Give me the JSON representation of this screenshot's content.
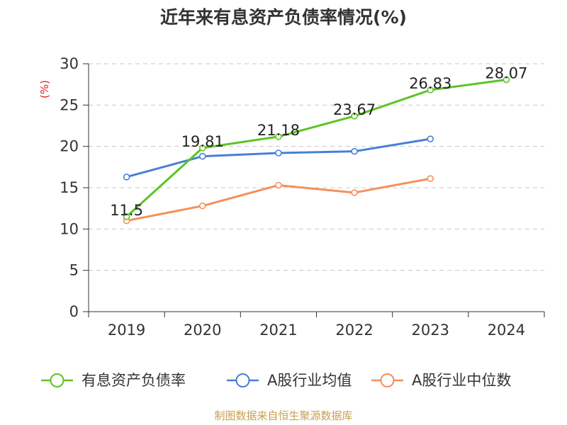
{
  "chart_data": {
    "type": "line",
    "title": "近年来有息资产负债率情况(%)",
    "ylabel": "(%)",
    "xlabel": "",
    "categories": [
      "2019",
      "2020",
      "2021",
      "2022",
      "2023",
      "2024"
    ],
    "ylim": [
      0,
      30
    ],
    "yticks": [
      0,
      5,
      10,
      15,
      20,
      25,
      30
    ],
    "grid": true,
    "legend_position": "bottom",
    "series": [
      {
        "name": "有息资产负债率",
        "color": "#5cc424",
        "values": [
          11.5,
          19.81,
          21.18,
          23.67,
          26.83,
          28.07
        ],
        "labels": [
          "11.5",
          "19.81",
          "21.18",
          "23.67",
          "26.83",
          "28.07"
        ]
      },
      {
        "name": "A股行业均值",
        "color": "#4a7fd8",
        "values": [
          16.3,
          18.8,
          19.2,
          19.4,
          20.9,
          null
        ]
      },
      {
        "name": "A股行业中位数",
        "color": "#f5905a",
        "values": [
          11.0,
          12.8,
          15.3,
          14.4,
          16.1,
          null
        ]
      }
    ],
    "source": "制图数据来自恒生聚源数据库"
  }
}
